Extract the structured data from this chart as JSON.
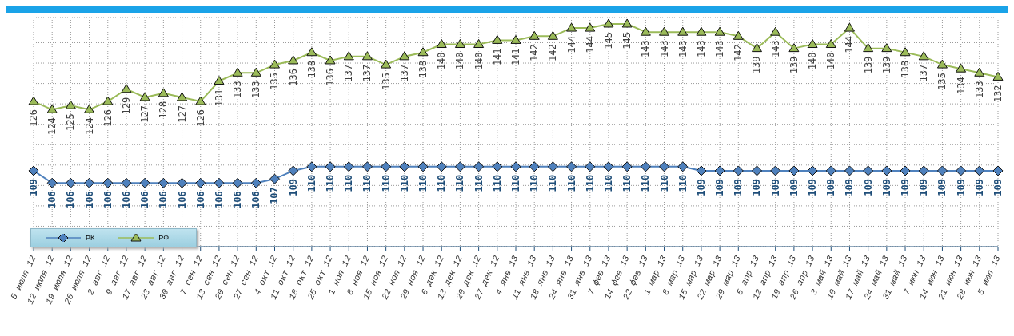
{
  "chart_data": {
    "type": "line",
    "categories": [
      "5 июля 12",
      "12 июля 12",
      "19 июля 12",
      "26 июля 12",
      "2 авг 12",
      "9 авг 12",
      "17 авг 12",
      "23 авг 12",
      "30 авг 12",
      "7 сен 12",
      "13 сен 12",
      "20 сен 12",
      "27 сен 12",
      "4 окт 12",
      "11 окт 12",
      "18 окт 12",
      "25 окт 12",
      "1 ноя 12",
      "8 ноя 12",
      "15 ноя 12",
      "22 ноя 12",
      "29 ноя 12",
      "6 дек 12",
      "13 дек 12",
      "20 дек 12",
      "27 дек 12",
      "4 янв 13",
      "11 янв 13",
      "18 янв 13",
      "24 янв 13",
      "31 янв 13",
      "7 фев 13",
      "14 фев 13",
      "22 фев 13",
      "1 мар 13",
      "8 мар 13",
      "15 мар 13",
      "22 мар 13",
      "29 мар 13",
      "5 апр 13",
      "12 апр 13",
      "19 апр 13",
      "26 апр 13",
      "3 май 13",
      "10 май 13",
      "17 май 13",
      "24 май 13",
      "31 май 13",
      "7 июн 13",
      "14 июн 13",
      "21 июн 13",
      "28 июн 13",
      "5 июл 13"
    ],
    "series": [
      {
        "name": "РК",
        "color": "#4f81bd",
        "marker": "diamond",
        "values": [
          109,
          106,
          106,
          106,
          106,
          106,
          106,
          106,
          106,
          106,
          106,
          106,
          106,
          107,
          109,
          110,
          110,
          110,
          110,
          110,
          110,
          110,
          110,
          110,
          110,
          110,
          110,
          110,
          110,
          110,
          110,
          110,
          110,
          110,
          110,
          110,
          109,
          109,
          109,
          109,
          109,
          109,
          109,
          109,
          109,
          109,
          109,
          109,
          109,
          109,
          109,
          109,
          109
        ]
      },
      {
        "name": "РФ",
        "color": "#9bbb59",
        "marker": "triangle",
        "values": [
          126,
          124,
          125,
          124,
          126,
          129,
          127,
          128,
          127,
          126,
          131,
          133,
          133,
          135,
          136,
          138,
          136,
          137,
          137,
          135,
          137,
          138,
          140,
          140,
          140,
          141,
          141,
          142,
          142,
          144,
          144,
          145,
          145,
          143,
          143,
          143,
          143,
          143,
          142,
          139,
          143,
          139,
          140,
          140,
          144,
          139,
          139,
          138,
          137,
          135,
          134,
          133,
          132
        ]
      }
    ],
    "data_labels": true,
    "grid": true,
    "legend": "bottom left"
  }
}
